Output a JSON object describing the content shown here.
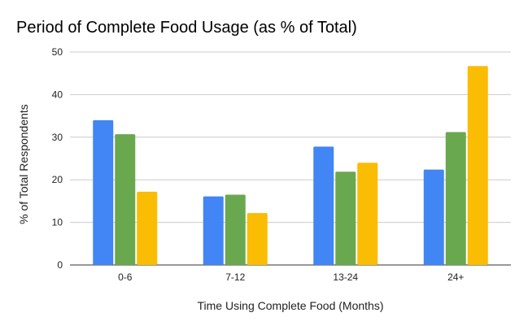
{
  "chart_data": {
    "type": "bar",
    "title": "Period of Complete Food Usage (as % of Total)",
    "xlabel": "Time Using Complete Food (Months)",
    "ylabel": "% of Total Respondents",
    "categories": [
      "0-6",
      "7-12",
      "13-24",
      "24+"
    ],
    "series": [
      {
        "values": [
          34.0,
          16.1,
          27.8,
          22.4
        ],
        "color": "#4285f4"
      },
      {
        "values": [
          30.7,
          16.5,
          21.9,
          31.2
        ],
        "color": "#6aa84f"
      },
      {
        "values": [
          17.2,
          12.2,
          24.0,
          46.7
        ],
        "color": "#fbbc04"
      }
    ],
    "ylim": [
      0,
      50
    ],
    "yticks": [
      0,
      10,
      20,
      30,
      40,
      50
    ],
    "grid": true,
    "legend": "none"
  }
}
